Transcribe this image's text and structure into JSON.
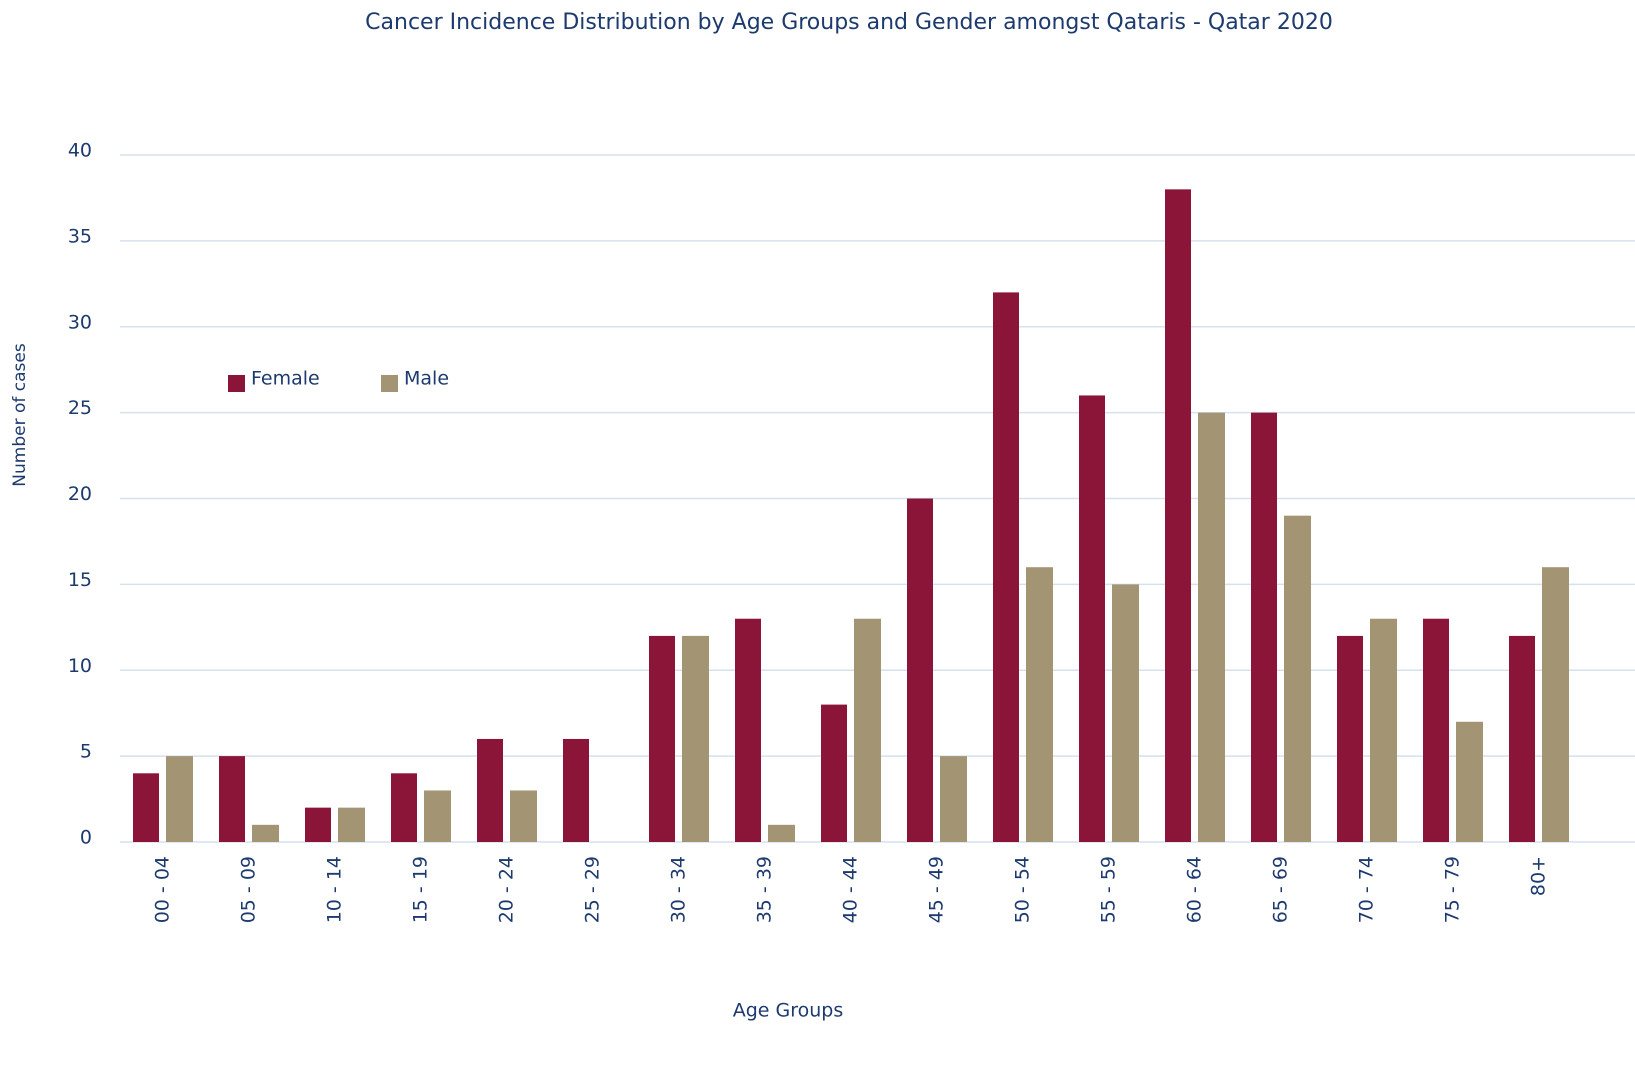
{
  "chart_data": {
    "type": "bar",
    "title": "Cancer Incidence Distribution by Age Groups and Gender amongst Qataris - Qatar 2020",
    "x_label": "Age Groups",
    "y_label": "Number of cases",
    "categories": [
      "00 - 04",
      "05 - 09",
      "10 - 14",
      "15 - 19",
      "20 - 24",
      "25 - 29",
      "30 - 34",
      "35 - 39",
      "40 - 44",
      "45 - 49",
      "50 - 54",
      "55 - 59",
      "60 - 64",
      "65 - 69",
      "70 - 74",
      "75 - 79",
      "80+"
    ],
    "series": [
      {
        "name": "Female",
        "color": "#8b1538",
        "values": [
          4,
          5,
          2,
          4,
          6,
          6,
          12,
          13,
          8,
          20,
          32,
          26,
          38,
          25,
          12,
          13,
          12
        ]
      },
      {
        "name": "Male",
        "color": "#a39474",
        "values": [
          5,
          1,
          2,
          3,
          3,
          0,
          12,
          1,
          13,
          5,
          16,
          15,
          25,
          19,
          13,
          7,
          16
        ]
      }
    ],
    "ylim": [
      0,
      40
    ],
    "yticks": [
      0,
      5,
      10,
      15,
      20,
      25,
      30,
      35,
      40
    ],
    "grid": true,
    "legend": "upper left"
  }
}
